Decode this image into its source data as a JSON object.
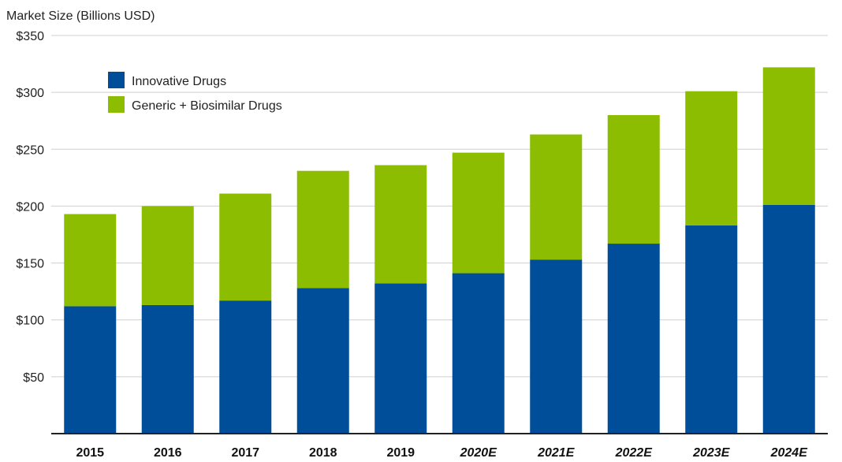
{
  "chart_data": {
    "type": "bar",
    "stacked": true,
    "ylabel": "Market Size (Billions USD)",
    "ylim": [
      0,
      350
    ],
    "y_ticks": [
      50,
      100,
      150,
      200,
      250,
      300,
      350
    ],
    "y_tick_labels": [
      "$50",
      "$100",
      "$150",
      "$200",
      "$250",
      "$300",
      "$350"
    ],
    "categories": [
      "2015",
      "2016",
      "2017",
      "2018",
      "2019",
      "2020E",
      "2021E",
      "2022E",
      "2023E",
      "2024E"
    ],
    "estimated_categories": [
      "2020E",
      "2021E",
      "2022E",
      "2023E",
      "2024E"
    ],
    "series": [
      {
        "name": "Innovative Drugs",
        "color": "#004d99",
        "values": [
          112,
          113,
          117,
          128,
          132,
          141,
          153,
          167,
          183,
          201
        ]
      },
      {
        "name": "Generic + Biosimilar Drugs",
        "color": "#8cbd00",
        "values": [
          81,
          87,
          94,
          103,
          104,
          106,
          110,
          113,
          118,
          121
        ]
      }
    ],
    "grid": true,
    "legend_position": "top-left"
  }
}
